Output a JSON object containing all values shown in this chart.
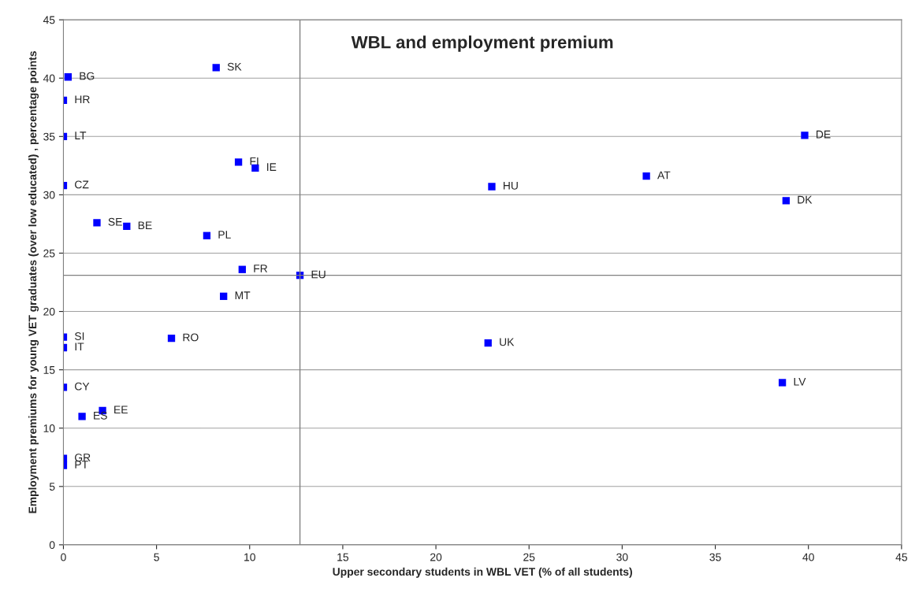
{
  "chart_data": {
    "type": "scatter",
    "title": "WBL and employment premium",
    "xlabel": "Upper secondary students in WBL VET (% of all students)",
    "ylabel": "Employment premiums for young VET graduates (over low educated) , percentage points",
    "x": [
      0.25,
      8.2,
      0,
      0,
      9.4,
      10.3,
      0,
      1.8,
      3.4,
      7.7,
      9.6,
      12.7,
      8.6,
      0,
      0,
      5.8,
      0,
      2.1,
      1.0,
      0,
      0,
      23.0,
      31.3,
      39.8,
      38.8,
      22.8,
      38.6
    ],
    "series": [
      {
        "color": "#0000ff",
        "values": [
          40.1,
          40.9,
          38.1,
          35.0,
          32.8,
          32.3,
          30.8,
          27.6,
          27.3,
          26.5,
          23.6,
          23.1,
          21.3,
          17.8,
          16.9,
          17.7,
          13.5,
          11.5,
          11.0,
          7.4,
          6.8,
          30.7,
          31.6,
          35.1,
          29.5,
          17.3,
          13.9
        ]
      }
    ],
    "annotations": [
      {
        "text": "BG",
        "x": 0.25,
        "y": 40.1
      },
      {
        "text": "SK",
        "x": 8.2,
        "y": 40.9
      },
      {
        "text": "HR",
        "x": 0,
        "y": 38.1
      },
      {
        "text": "LT",
        "x": 0,
        "y": 35.0
      },
      {
        "text": "FI",
        "x": 9.4,
        "y": 32.8
      },
      {
        "text": "IE",
        "x": 10.3,
        "y": 32.3
      },
      {
        "text": "CZ",
        "x": 0,
        "y": 30.8
      },
      {
        "text": "SE",
        "x": 1.8,
        "y": 27.6
      },
      {
        "text": "BE",
        "x": 3.4,
        "y": 27.3
      },
      {
        "text": "PL",
        "x": 7.7,
        "y": 26.5
      },
      {
        "text": "FR",
        "x": 9.6,
        "y": 23.6
      },
      {
        "text": "EU",
        "x": 12.7,
        "y": 23.1
      },
      {
        "text": "MT",
        "x": 8.6,
        "y": 21.3
      },
      {
        "text": "SI",
        "x": 0,
        "y": 17.8
      },
      {
        "text": "IT",
        "x": 0,
        "y": 16.9
      },
      {
        "text": "RO",
        "x": 5.8,
        "y": 17.7
      },
      {
        "text": "CY",
        "x": 0,
        "y": 13.5
      },
      {
        "text": "EE",
        "x": 2.1,
        "y": 11.5
      },
      {
        "text": "ES",
        "x": 1.0,
        "y": 11.0
      },
      {
        "text": "GR",
        "x": 0,
        "y": 7.4
      },
      {
        "text": "PT",
        "x": 0,
        "y": 6.8
      },
      {
        "text": "HU",
        "x": 23.0,
        "y": 30.7
      },
      {
        "text": "AT",
        "x": 31.3,
        "y": 31.6
      },
      {
        "text": "DE",
        "x": 39.8,
        "y": 35.1
      },
      {
        "text": "DK",
        "x": 38.8,
        "y": 29.5
      },
      {
        "text": "UK",
        "x": 22.8,
        "y": 17.3
      },
      {
        "text": "LV",
        "x": 38.6,
        "y": 13.9
      }
    ],
    "ref_lines": [
      {
        "axis": "x",
        "value": 12.7,
        "color": "#808080"
      },
      {
        "axis": "y",
        "value": 23.1,
        "color": "#808080"
      }
    ],
    "xlim": [
      0,
      45
    ],
    "xticks": [
      0,
      5,
      10,
      15,
      20,
      25,
      30,
      35,
      40,
      45
    ],
    "ylim": [
      0,
      45
    ],
    "yticks": [
      0,
      5,
      10,
      15,
      20,
      25,
      30,
      35,
      40,
      45
    ],
    "grid": "y",
    "marker": "square",
    "legend": false
  }
}
